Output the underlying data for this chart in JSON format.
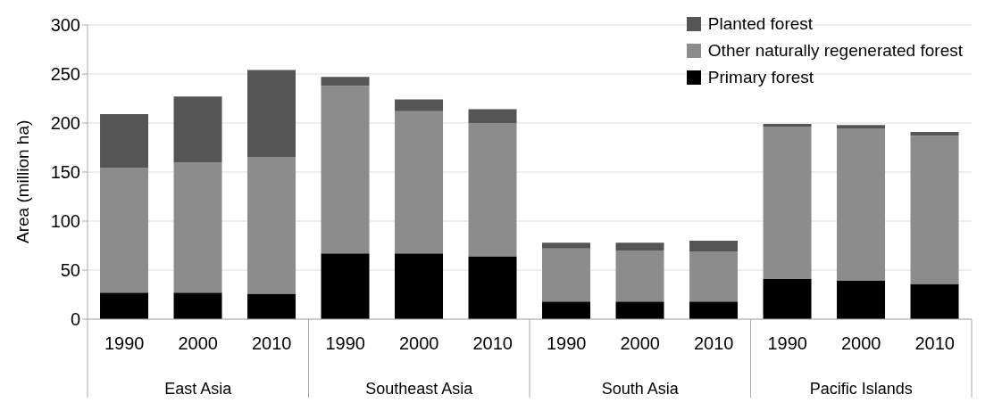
{
  "chart_data": {
    "type": "bar",
    "stacked": true,
    "ylabel": "Area (million ha)",
    "categories": [
      "1990",
      "2000",
      "2010",
      "1990",
      "2000",
      "2010",
      "1990",
      "2000",
      "2010",
      "1990",
      "2000",
      "2010"
    ],
    "annotations": [
      "East Asia",
      "Southeast Asia",
      "South Asia",
      "Pacific Islands"
    ],
    "series": [
      {
        "name": "Primary forest",
        "color": "#000000",
        "values": [
          27,
          27,
          26,
          67,
          67,
          64,
          18,
          18,
          18,
          41,
          39,
          36
        ]
      },
      {
        "name": "Other naturally regenerated forest",
        "color": "#8c8c8c",
        "values": [
          127,
          133,
          139,
          171,
          145,
          136,
          54,
          52,
          51,
          155,
          155,
          151
        ]
      },
      {
        "name": "Planted forest",
        "color": "#555555",
        "values": [
          55,
          67,
          89,
          9,
          12,
          14,
          6,
          8,
          11,
          3,
          4,
          4
        ]
      }
    ],
    "ylim": [
      0,
      300
    ],
    "yticks": [
      0,
      50,
      100,
      150,
      200,
      250,
      300
    ],
    "grid": "y",
    "legend": "top right"
  }
}
